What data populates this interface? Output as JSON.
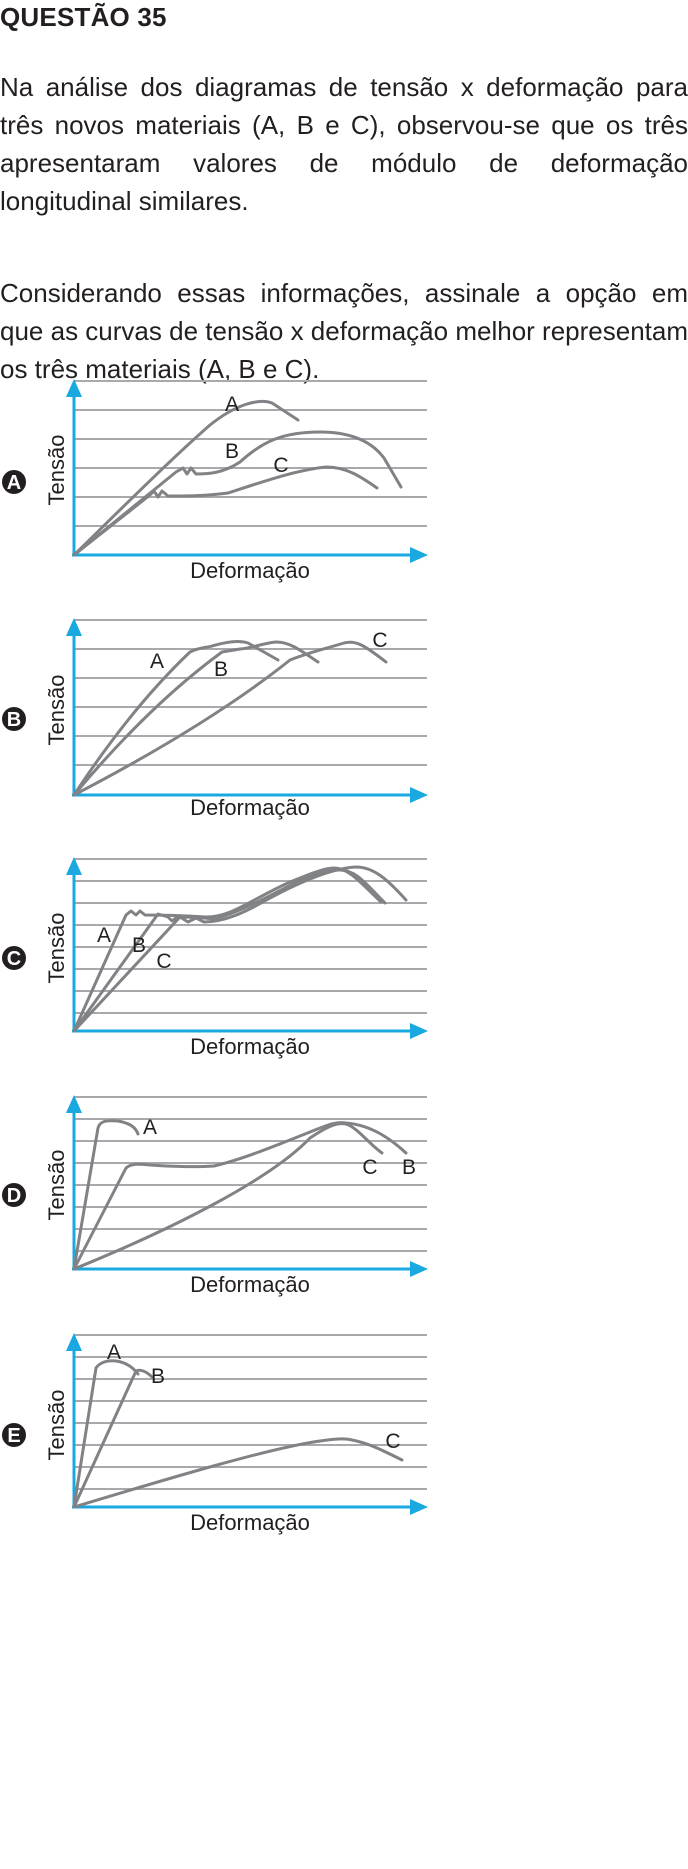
{
  "question": {
    "title": "QUESTÃO 35",
    "paragraph1": "Na análise dos diagramas de tensão x deformação para três novos materiais (A, B e C), observou-se que os três apresentaram valores de módulo de deformação longitudinal similares.",
    "paragraph2": "Considerando essas informações, assinale a opção em que as curvas de tensão x deformação melhor representam os três materiais (A, B e C)."
  },
  "colors": {
    "axis": "#19a8e0",
    "grid": "#a7a9ac",
    "curve": "#808285",
    "text": "#231f20",
    "badge": "#231f20"
  },
  "options": [
    {
      "letter": "A",
      "xlabel": "Deformação",
      "ylabel": "Tensão",
      "curves": [
        {
          "name": "A"
        },
        {
          "name": "B"
        },
        {
          "name": "C"
        }
      ]
    },
    {
      "letter": "B",
      "xlabel": "Deformação",
      "ylabel": "Tensão",
      "curves": [
        {
          "name": "A"
        },
        {
          "name": "B"
        },
        {
          "name": "C"
        }
      ]
    },
    {
      "letter": "C",
      "xlabel": "Deformação",
      "ylabel": "Tensão",
      "curves": [
        {
          "name": "A"
        },
        {
          "name": "B"
        },
        {
          "name": "C"
        }
      ]
    },
    {
      "letter": "D",
      "xlabel": "Deformação",
      "ylabel": "Tensão",
      "curves": [
        {
          "name": "A"
        },
        {
          "name": "C"
        },
        {
          "name": "B"
        }
      ]
    },
    {
      "letter": "E",
      "xlabel": "Deformação",
      "ylabel": "Tensão",
      "curves": [
        {
          "name": "A"
        },
        {
          "name": "B"
        },
        {
          "name": "C"
        }
      ]
    }
  ]
}
